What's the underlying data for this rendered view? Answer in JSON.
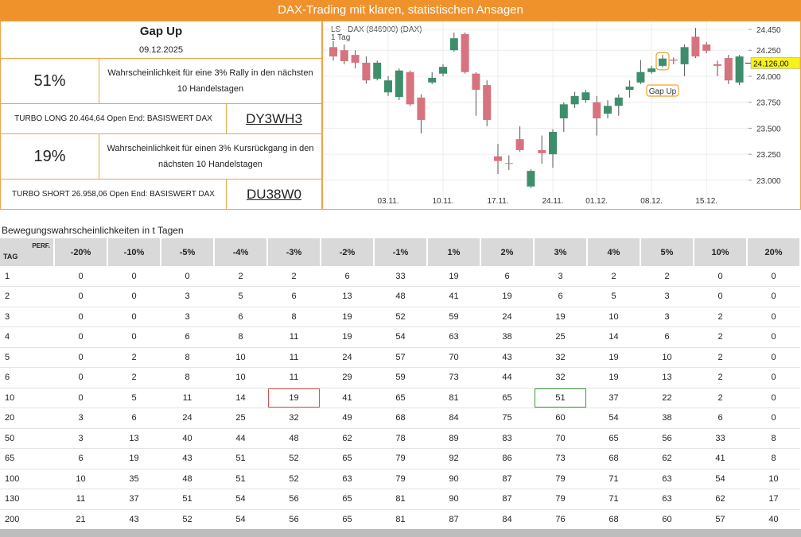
{
  "header": {
    "title": "DAX-Trading mit klaren, statistischen Ansagen"
  },
  "panel": {
    "title": "Gap Up",
    "date": "09.12.2025",
    "rally": {
      "probability": "51%",
      "text": "Wahrscheinlichkeit für eine 3% Rally in den nächsten 10 Handelstagen"
    },
    "long": {
      "description": "TURBO LONG 20.464,64 Open End: BASISWERT DAX",
      "code": "DY3WH3"
    },
    "decline": {
      "probability": "19%",
      "text": "Wahrscheinlichkeit für einen 3% Kursrückgang in den nächsten 10 Handelstagen"
    },
    "short": {
      "description": "TURBO SHORT 26.958,06 Open End: BASISWERT DAX",
      "code": "DU38W0"
    }
  },
  "chart_data": {
    "type": "candlestick",
    "title": "LS - DAX (846900) (DAX)",
    "subtitle": "1 Tag",
    "categories": [
      null,
      null,
      null,
      null,
      null,
      "03.11.",
      null,
      null,
      null,
      null,
      "10.11.",
      null,
      null,
      null,
      null,
      "17.11.",
      null,
      null,
      null,
      null,
      "24.11.",
      null,
      null,
      null,
      "01.12.",
      null,
      null,
      null,
      null,
      "08.12.",
      null,
      null,
      null,
      null,
      "15.12.",
      null,
      null,
      null
    ],
    "open": [
      24280,
      24250,
      24205,
      24130,
      23975,
      23845,
      23800,
      24040,
      23795,
      23940,
      24025,
      24250,
      24405,
      24025,
      23915,
      23230,
      23165,
      23395,
      22940,
      23290,
      23250,
      23595,
      23730,
      23770,
      23750,
      23640,
      23715,
      23870,
      23940,
      24040,
      24100,
      24160,
      24115,
      24380,
      24305,
      24115,
      24175,
      23940
    ],
    "high": [
      24340,
      24305,
      24250,
      24190,
      24150,
      24000,
      24075,
      24055,
      23825,
      24040,
      24115,
      24420,
      24420,
      24040,
      23960,
      23350,
      23240,
      23520,
      23105,
      23430,
      23490,
      23750,
      23850,
      23870,
      23810,
      23770,
      23825,
      23960,
      24155,
      24100,
      24205,
      24180,
      24305,
      24465,
      24330,
      24150,
      24205,
      24205
    ],
    "low": [
      24150,
      24115,
      24075,
      23930,
      23960,
      23810,
      23770,
      23715,
      23450,
      23925,
      24000,
      24235,
      24025,
      23620,
      23520,
      23060,
      23100,
      23275,
      22925,
      23160,
      23120,
      23465,
      23695,
      23745,
      23430,
      23595,
      23620,
      23795,
      23925,
      24025,
      24085,
      24115,
      24000,
      24175,
      24220,
      24000,
      23925,
      23915
    ],
    "close": [
      24190,
      24145,
      24130,
      23960,
      24130,
      23960,
      24055,
      23730,
      23580,
      23985,
      24090,
      24365,
      24040,
      23870,
      23580,
      23185,
      23160,
      23290,
      23090,
      23260,
      23465,
      23730,
      23810,
      23845,
      23595,
      23715,
      23795,
      23900,
      24040,
      24075,
      24170,
      24150,
      24280,
      24190,
      24245,
      24100,
      23960,
      24190
    ],
    "up_color": "#3d8f6b",
    "down_color": "#d6737f",
    "ylim": [
      22900,
      24500
    ],
    "yticks": [
      {
        "value": 23000,
        "label": "23.000"
      },
      {
        "value": 23250,
        "label": "23.250"
      },
      {
        "value": 23500,
        "label": "23.500"
      },
      {
        "value": 23750,
        "label": "23.750"
      },
      {
        "value": 24000,
        "label": "24.000"
      },
      {
        "value": 24250,
        "label": "24.250"
      },
      {
        "value": 24450,
        "label": "24.450"
      }
    ],
    "last_price": {
      "value": 24126,
      "label": "24.126,00"
    },
    "annotation": {
      "text": "Gap Up",
      "category_index": 30
    },
    "grid": true
  },
  "table": {
    "title": "Bewegungswahrscheinlichkeiten in t Tagen",
    "row_header": "TAG",
    "column_header": "PERF.",
    "columns": [
      "-20%",
      "-10%",
      "-5%",
      "-4%",
      "-3%",
      "-2%",
      "-1%",
      "1%",
      "2%",
      "3%",
      "4%",
      "5%",
      "10%",
      "20%"
    ],
    "rows": [
      [
        1,
        0,
        0,
        0,
        2,
        2,
        6,
        33,
        19,
        6,
        3,
        2,
        2,
        0,
        0
      ],
      [
        2,
        0,
        0,
        3,
        5,
        6,
        13,
        48,
        41,
        19,
        6,
        5,
        3,
        0,
        0
      ],
      [
        3,
        0,
        0,
        3,
        6,
        8,
        19,
        52,
        59,
        24,
        19,
        10,
        3,
        2,
        0
      ],
      [
        4,
        0,
        0,
        6,
        8,
        11,
        19,
        54,
        63,
        38,
        25,
        14,
        6,
        2,
        0
      ],
      [
        5,
        0,
        2,
        8,
        10,
        11,
        24,
        57,
        70,
        43,
        32,
        19,
        10,
        2,
        0
      ],
      [
        6,
        0,
        2,
        8,
        10,
        11,
        29,
        59,
        73,
        44,
        32,
        19,
        13,
        2,
        0
      ],
      [
        10,
        0,
        5,
        11,
        14,
        19,
        41,
        65,
        81,
        65,
        51,
        37,
        22,
        2,
        0
      ],
      [
        20,
        3,
        6,
        24,
        25,
        32,
        49,
        68,
        84,
        75,
        60,
        54,
        38,
        6,
        0
      ],
      [
        50,
        3,
        13,
        40,
        44,
        48,
        62,
        78,
        89,
        83,
        70,
        65,
        56,
        33,
        8
      ],
      [
        65,
        6,
        19,
        43,
        51,
        52,
        65,
        79,
        92,
        86,
        73,
        68,
        62,
        41,
        8
      ],
      [
        100,
        10,
        35,
        48,
        51,
        52,
        63,
        79,
        90,
        87,
        79,
        71,
        63,
        54,
        10
      ],
      [
        130,
        11,
        37,
        51,
        54,
        56,
        65,
        81,
        90,
        87,
        79,
        71,
        63,
        62,
        17
      ],
      [
        200,
        21,
        43,
        52,
        54,
        56,
        65,
        81,
        87,
        84,
        76,
        68,
        60,
        57,
        40
      ]
    ],
    "highlights": [
      {
        "row": 6,
        "column": 5,
        "color": "#d9534f"
      },
      {
        "row": 6,
        "column": 10,
        "color": "#3c9a3c"
      }
    ]
  }
}
